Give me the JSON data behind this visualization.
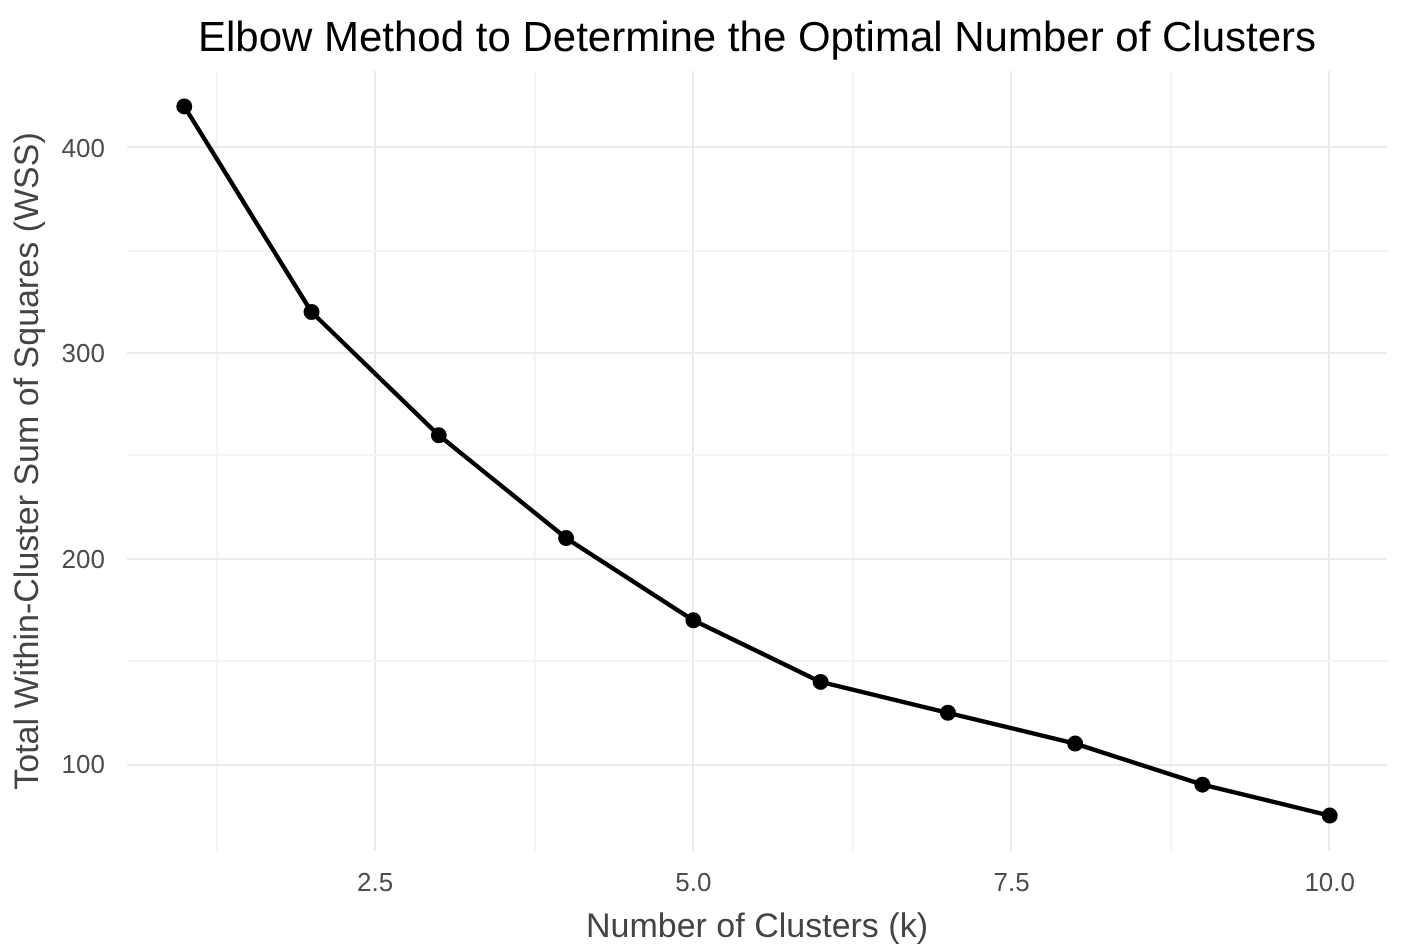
{
  "chart_data": {
    "type": "line",
    "title": "Elbow Method to Determine the Optimal Number of Clusters",
    "xlabel": "Number of Clusters (k)",
    "ylabel": "Total Within-Cluster Sum of Squares (WSS)",
    "x": [
      1,
      2,
      3,
      4,
      5,
      6,
      7,
      8,
      9,
      10
    ],
    "series": [
      {
        "color": "#000000",
        "values": [
          420,
          320,
          260,
          210,
          170,
          140,
          125,
          110,
          90,
          75
        ]
      }
    ],
    "xlim": [
      0.55,
      10.45
    ],
    "ylim": [
      57.75,
      437.25
    ],
    "xticks": [
      {
        "value": 2.5,
        "label": "2.5"
      },
      {
        "value": 5,
        "label": "5.0"
      },
      {
        "value": 7.5,
        "label": "7.5"
      },
      {
        "value": 10,
        "label": "10.0"
      }
    ],
    "yticks": [
      100,
      200,
      300,
      400
    ],
    "grid": true,
    "marker": "circle",
    "line_style": "solid"
  }
}
